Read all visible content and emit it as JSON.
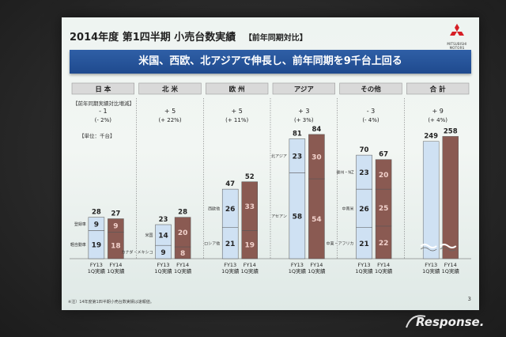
{
  "slide": {
    "title": "2014年度 第1四半期 小売台数実績",
    "subtitle": "【前年同期対比】",
    "banner": "米国、西欧、北アジアで伸長し、前年同期を9千台上回る",
    "logo_text": "MITSUBISHI MOTORS",
    "change_caption": "【前年同期実績対比増減】",
    "unit": "【単位：千台】",
    "footnote": "※注）14年度第1四半期小売台数実績は速報値。",
    "page_number": "3",
    "watermark": "Response."
  },
  "colors": {
    "fy13_fill": "#cfe1f3",
    "fy14_fill": "#8a5a52",
    "category_header": "#d9d9d9",
    "banner": "#2a579c"
  },
  "chart_data": {
    "type": "bar",
    "stacked": true,
    "x_tick_labels": [
      [
        "FY13",
        "1Q実績"
      ],
      [
        "FY14",
        "1Q実績"
      ]
    ],
    "groups": [
      {
        "name": "日 本",
        "change": "- 1",
        "change_pct": "(- 2%)",
        "segments": [
          "登録車",
          "軽自動車"
        ],
        "fy13": {
          "total": 28,
          "values": [
            9,
            19
          ]
        },
        "fy14": {
          "total": 27,
          "values": [
            9,
            18
          ]
        }
      },
      {
        "name": "北 米",
        "change": "+ 5",
        "change_pct": "(+ 22%)",
        "segments": [
          "米国",
          "カナダ・メキシコ"
        ],
        "fy13": {
          "total": 23,
          "values": [
            14,
            9
          ]
        },
        "fy14": {
          "total": 28,
          "values": [
            20,
            8
          ]
        }
      },
      {
        "name": "欧 州",
        "change": "+ 5",
        "change_pct": "(+ 11%)",
        "segments": [
          "西欧他",
          "ロシア他"
        ],
        "fy13": {
          "total": 47,
          "values": [
            26,
            21
          ]
        },
        "fy14": {
          "total": 52,
          "values": [
            33,
            19
          ]
        }
      },
      {
        "name": "アジア",
        "change": "+ 3",
        "change_pct": "(+ 3%)",
        "segments": [
          "北アジア",
          "アセアン"
        ],
        "fy13": {
          "total": 81,
          "values": [
            23,
            58
          ]
        },
        "fy14": {
          "total": 84,
          "values": [
            30,
            54
          ]
        }
      },
      {
        "name": "その他",
        "change": "- 3",
        "change_pct": "(- 4%)",
        "segments": [
          "豪州・NZ",
          "中南米",
          "中東・アフリカ"
        ],
        "fy13": {
          "total": 70,
          "values": [
            23,
            26,
            21
          ]
        },
        "fy14": {
          "total": 67,
          "values": [
            20,
            25,
            22
          ]
        }
      },
      {
        "name": "合 計",
        "change": "+ 9",
        "change_pct": "(+ 4%)",
        "segments": [],
        "axis_break": true,
        "fy13": {
          "total": 249,
          "values": [
            249
          ]
        },
        "fy14": {
          "total": 258,
          "values": [
            258
          ]
        }
      }
    ]
  }
}
